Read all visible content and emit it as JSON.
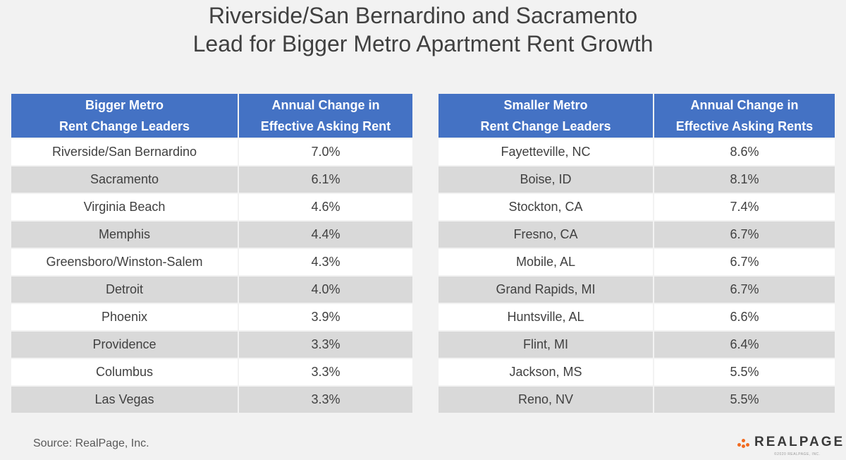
{
  "title": {
    "line1": "Riverside/San Bernardino and Sacramento",
    "line2": "Lead for Bigger Metro Apartment Rent Growth"
  },
  "chart_data": [
    {
      "type": "table",
      "columns": [
        "Bigger Metro\nRent Change Leaders",
        "Annual Change in\nEffective Asking Rent"
      ],
      "rows": [
        [
          "Riverside/San Bernardino",
          "7.0%"
        ],
        [
          "Sacramento",
          "6.1%"
        ],
        [
          "Virginia Beach",
          "4.6%"
        ],
        [
          "Memphis",
          "4.4%"
        ],
        [
          "Greensboro/Winston-Salem",
          "4.3%"
        ],
        [
          "Detroit",
          "4.0%"
        ],
        [
          "Phoenix",
          "3.9%"
        ],
        [
          "Providence",
          "3.3%"
        ],
        [
          "Columbus",
          "3.3%"
        ],
        [
          "Las Vegas",
          "3.3%"
        ]
      ]
    },
    {
      "type": "table",
      "columns": [
        "Smaller Metro\nRent Change Leaders",
        "Annual Change in\nEffective Asking Rents"
      ],
      "rows": [
        [
          "Fayetteville, NC",
          "8.6%"
        ],
        [
          "Boise, ID",
          "8.1%"
        ],
        [
          "Stockton, CA",
          "7.4%"
        ],
        [
          "Fresno, CA",
          "6.7%"
        ],
        [
          "Mobile, AL",
          "6.7%"
        ],
        [
          "Grand Rapids, MI",
          "6.7%"
        ],
        [
          "Huntsville, AL",
          "6.6%"
        ],
        [
          "Flint, MI",
          "6.4%"
        ],
        [
          "Jackson, MS",
          "5.5%"
        ],
        [
          "Reno, NV",
          "5.5%"
        ]
      ]
    }
  ],
  "colors": {
    "header_bg": "#4472c4",
    "header_text": "#ffffff",
    "row_even_bg": "#d9d9d9",
    "row_odd_bg": "#ffffff",
    "logo_accent": "#f26b21"
  },
  "footer": {
    "source": "Source: RealPage, Inc.",
    "logo_text": "REALPAGE",
    "logo_tagline": "©2020 REALPAGE, INC.",
    "logo_icon": "realpage-dots-icon"
  }
}
